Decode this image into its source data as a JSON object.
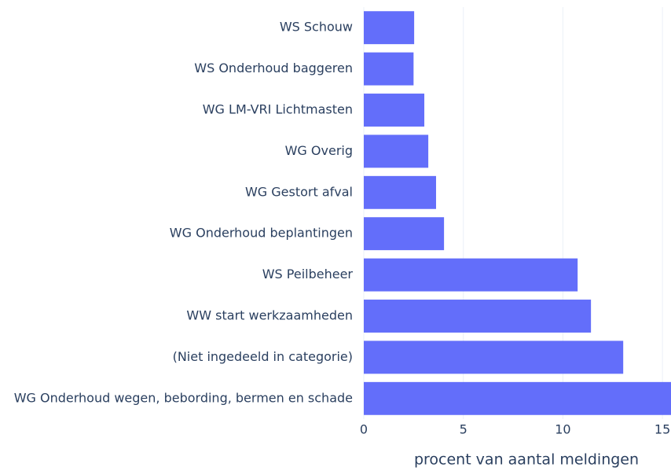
{
  "chart_data": {
    "type": "barh",
    "x_label": "procent van aantal meldingen",
    "categories": [
      "WS Schouw",
      "WS Onderhoud baggeren",
      "WG LM-VRI Lichtmasten",
      "WG Overig",
      "WG Gestort afval",
      "WG Onderhoud beplantingen",
      "WS Peilbeheer",
      "WW start werkzaamheden",
      "(Niet ingedeeld in categorie)",
      "WG Onderhoud wegen, bebording, bermen en schade"
    ],
    "values": [
      2.53,
      2.5,
      3.04,
      3.24,
      3.63,
      4.03,
      10.74,
      11.41,
      13.03,
      15.43
    ],
    "color": "#636efa",
    "xlim": [
      0,
      15.43
    ],
    "xticks": [
      0,
      5,
      10,
      15
    ],
    "grid": true
  }
}
